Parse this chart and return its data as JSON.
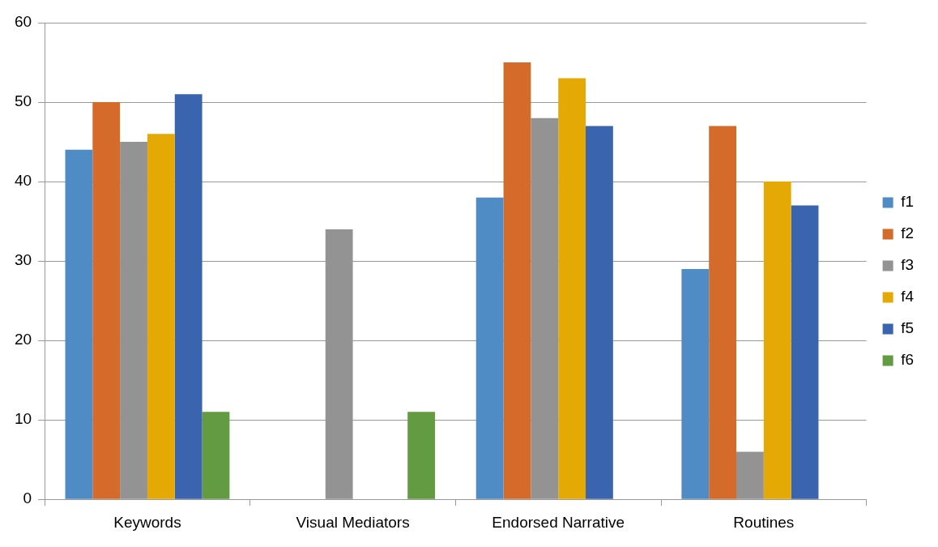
{
  "chart_data": {
    "type": "bar",
    "categories": [
      "Keywords",
      "Visual Mediators",
      "Endorsed Narrative",
      "Routines"
    ],
    "series": [
      {
        "name": "f1",
        "color": "#4f8bc4",
        "values": [
          44,
          0,
          38,
          29
        ]
      },
      {
        "name": "f2",
        "color": "#d46b2a",
        "values": [
          50,
          0,
          55,
          47
        ]
      },
      {
        "name": "f3",
        "color": "#939393",
        "values": [
          45,
          34,
          48,
          6
        ]
      },
      {
        "name": "f4",
        "color": "#e5a905",
        "values": [
          46,
          0,
          53,
          40
        ]
      },
      {
        "name": "f5",
        "color": "#3b64ae",
        "values": [
          51,
          0,
          47,
          37
        ]
      },
      {
        "name": "f6",
        "color": "#629b41",
        "values": [
          11,
          11,
          0,
          0
        ]
      }
    ],
    "ylim": [
      0,
      60
    ],
    "yticks": [
      0,
      10,
      20,
      30,
      40,
      50,
      60
    ],
    "grid": "y",
    "legend": "right"
  }
}
